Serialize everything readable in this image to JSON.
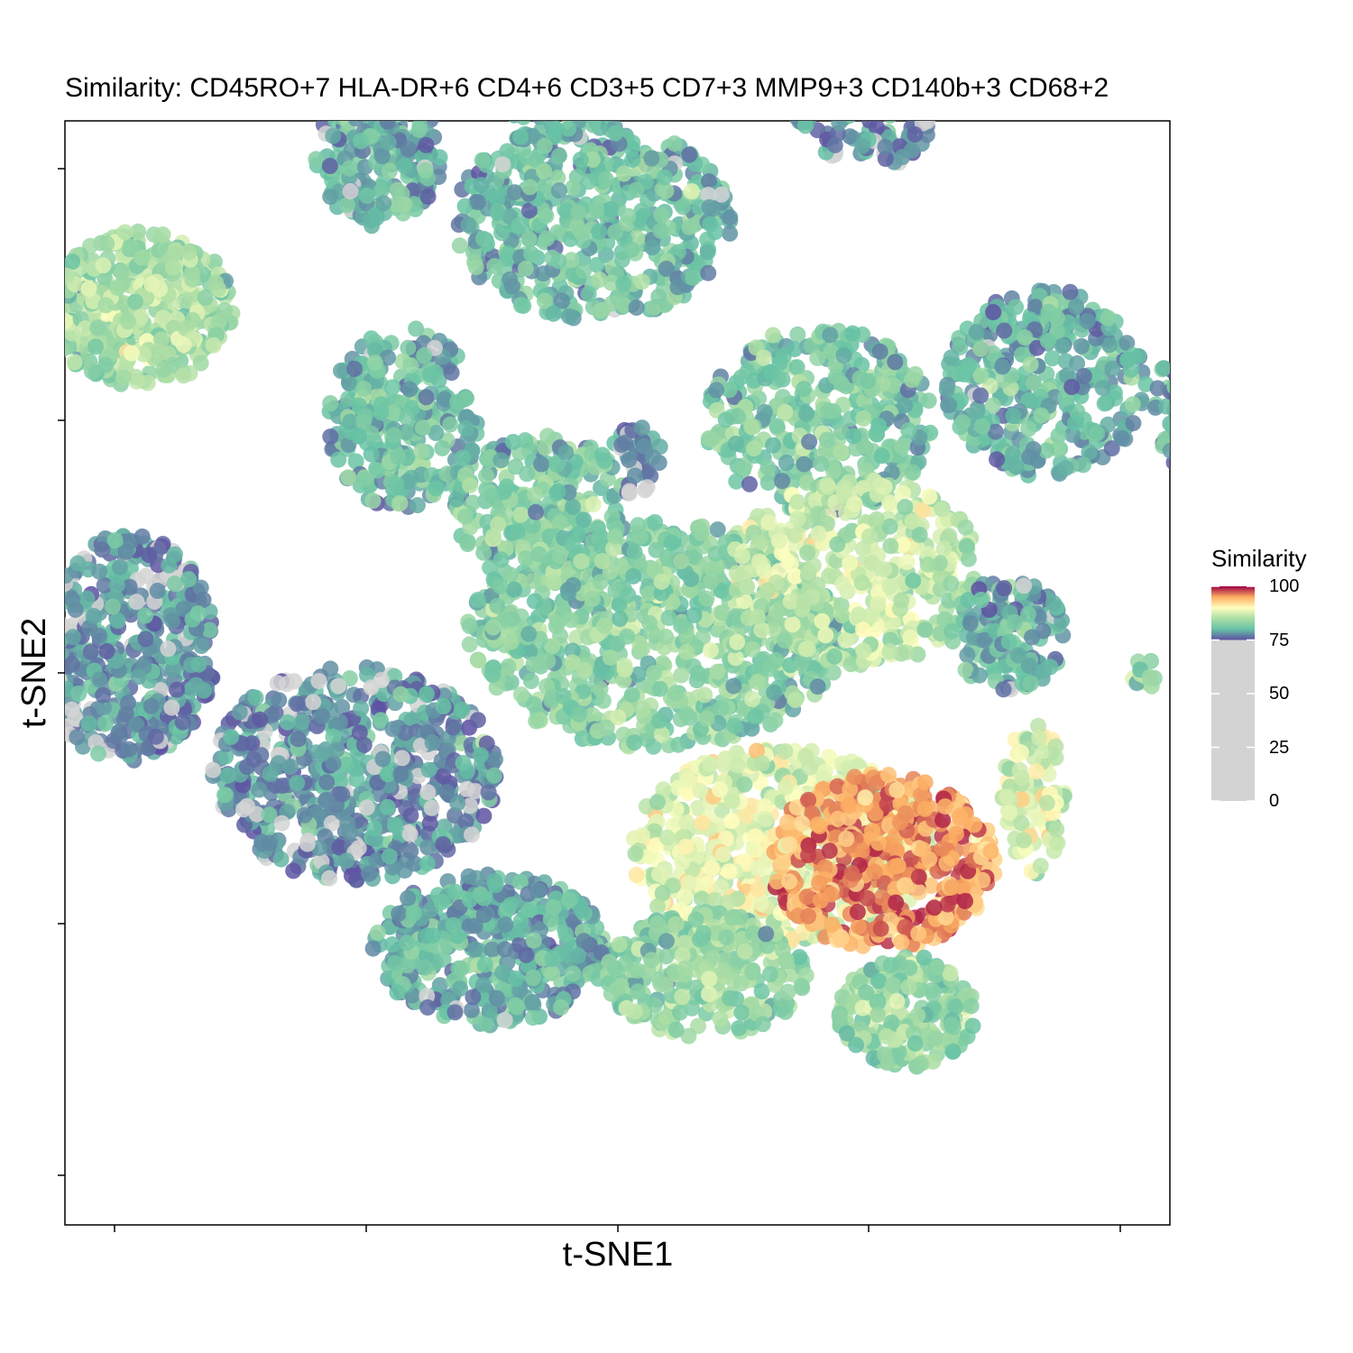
{
  "chart_data": {
    "type": "scatter",
    "title": "Similarity: CD45RO+7 HLA-DR+6 CD4+6 CD3+5 CD7+3 MMP9+3 CD140b+3 CD68+2",
    "xlabel": "t-SNE1",
    "ylabel": "t-SNE2",
    "x_tick_labels": [
      "",
      "",
      "",
      "",
      ""
    ],
    "y_tick_labels": [
      "",
      "",
      "",
      "",
      ""
    ],
    "grid": false,
    "legend": {
      "title": "Similarity",
      "position": "right",
      "ticks": [
        "100",
        "75",
        "50",
        "25",
        "0"
      ],
      "range": [
        0,
        100
      ],
      "colored_range": [
        75,
        100
      ],
      "below_color": "#d3d3d3",
      "gradient": [
        {
          "value": 75,
          "color": "#5e4fa2"
        },
        {
          "value": 80,
          "color": "#66c2a5"
        },
        {
          "value": 85,
          "color": "#abdda4"
        },
        {
          "value": 90,
          "color": "#ffffbf"
        },
        {
          "value": 95,
          "color": "#fdae61"
        },
        {
          "value": 100,
          "color": "#9e0142"
        }
      ]
    },
    "clusters": [
      {
        "x": -3.8,
        "y": 2.9,
        "rx": 0.75,
        "ry": 0.62,
        "n": 420,
        "value": 84
      },
      {
        "x": -3.9,
        "y": 0.2,
        "rx": 0.72,
        "ry": 0.9,
        "n": 480,
        "value": 77
      },
      {
        "x": -1.9,
        "y": 4.1,
        "rx": 0.5,
        "ry": 0.55,
        "n": 220,
        "value": 79
      },
      {
        "x": -0.7,
        "y": 5.3,
        "rx": 0.95,
        "ry": 0.9,
        "n": 560,
        "value": 79
      },
      {
        "x": -0.2,
        "y": 3.6,
        "rx": 1.1,
        "ry": 0.8,
        "n": 520,
        "value": 80
      },
      {
        "x": 2.0,
        "y": 5.0,
        "rx": 0.75,
        "ry": 1.0,
        "n": 420,
        "value": 77
      },
      {
        "x": 3.4,
        "y": 2.3,
        "rx": 0.8,
        "ry": 0.75,
        "n": 360,
        "value": 79
      },
      {
        "x": 4.9,
        "y": 2.1,
        "rx": 0.65,
        "ry": 0.75,
        "n": 300,
        "value": 79
      },
      {
        "x": 1.6,
        "y": 2.0,
        "rx": 0.9,
        "ry": 0.75,
        "n": 380,
        "value": 81
      },
      {
        "x": -1.7,
        "y": 2.0,
        "rx": 0.6,
        "ry": 0.75,
        "n": 280,
        "value": 80
      },
      {
        "x": -0.6,
        "y": 1.3,
        "rx": 0.7,
        "ry": 0.6,
        "n": 260,
        "value": 81
      },
      {
        "x": 0.3,
        "y": 0.3,
        "rx": 1.5,
        "ry": 0.9,
        "n": 820,
        "value": 82
      },
      {
        "x": 1.9,
        "y": 0.8,
        "rx": 1.0,
        "ry": 0.75,
        "n": 420,
        "value": 86
      },
      {
        "x": -2.1,
        "y": -0.8,
        "rx": 1.15,
        "ry": 0.85,
        "n": 640,
        "value": 77
      },
      {
        "x": 3.1,
        "y": 0.3,
        "rx": 0.45,
        "ry": 0.45,
        "n": 140,
        "value": 79
      },
      {
        "x": -1.0,
        "y": -2.2,
        "rx": 0.95,
        "ry": 0.6,
        "n": 420,
        "value": 79
      },
      {
        "x": 1.3,
        "y": -1.4,
        "rx": 1.2,
        "ry": 0.8,
        "n": 620,
        "value": 88
      },
      {
        "x": 2.1,
        "y": -1.5,
        "rx": 0.9,
        "ry": 0.7,
        "n": 460,
        "value": 95
      },
      {
        "x": 0.7,
        "y": -2.4,
        "rx": 0.8,
        "ry": 0.5,
        "n": 300,
        "value": 83
      },
      {
        "x": 2.3,
        "y": -2.7,
        "rx": 0.55,
        "ry": 0.45,
        "n": 220,
        "value": 83
      },
      {
        "x": 3.3,
        "y": -1.0,
        "rx": 0.25,
        "ry": 0.6,
        "n": 90,
        "value": 87
      },
      {
        "x": 0.15,
        "y": 1.7,
        "rx": 0.2,
        "ry": 0.3,
        "n": 40,
        "value": 76
      },
      {
        "x": 4.2,
        "y": 0.0,
        "rx": 0.12,
        "ry": 0.12,
        "n": 12,
        "value": 84
      }
    ]
  }
}
